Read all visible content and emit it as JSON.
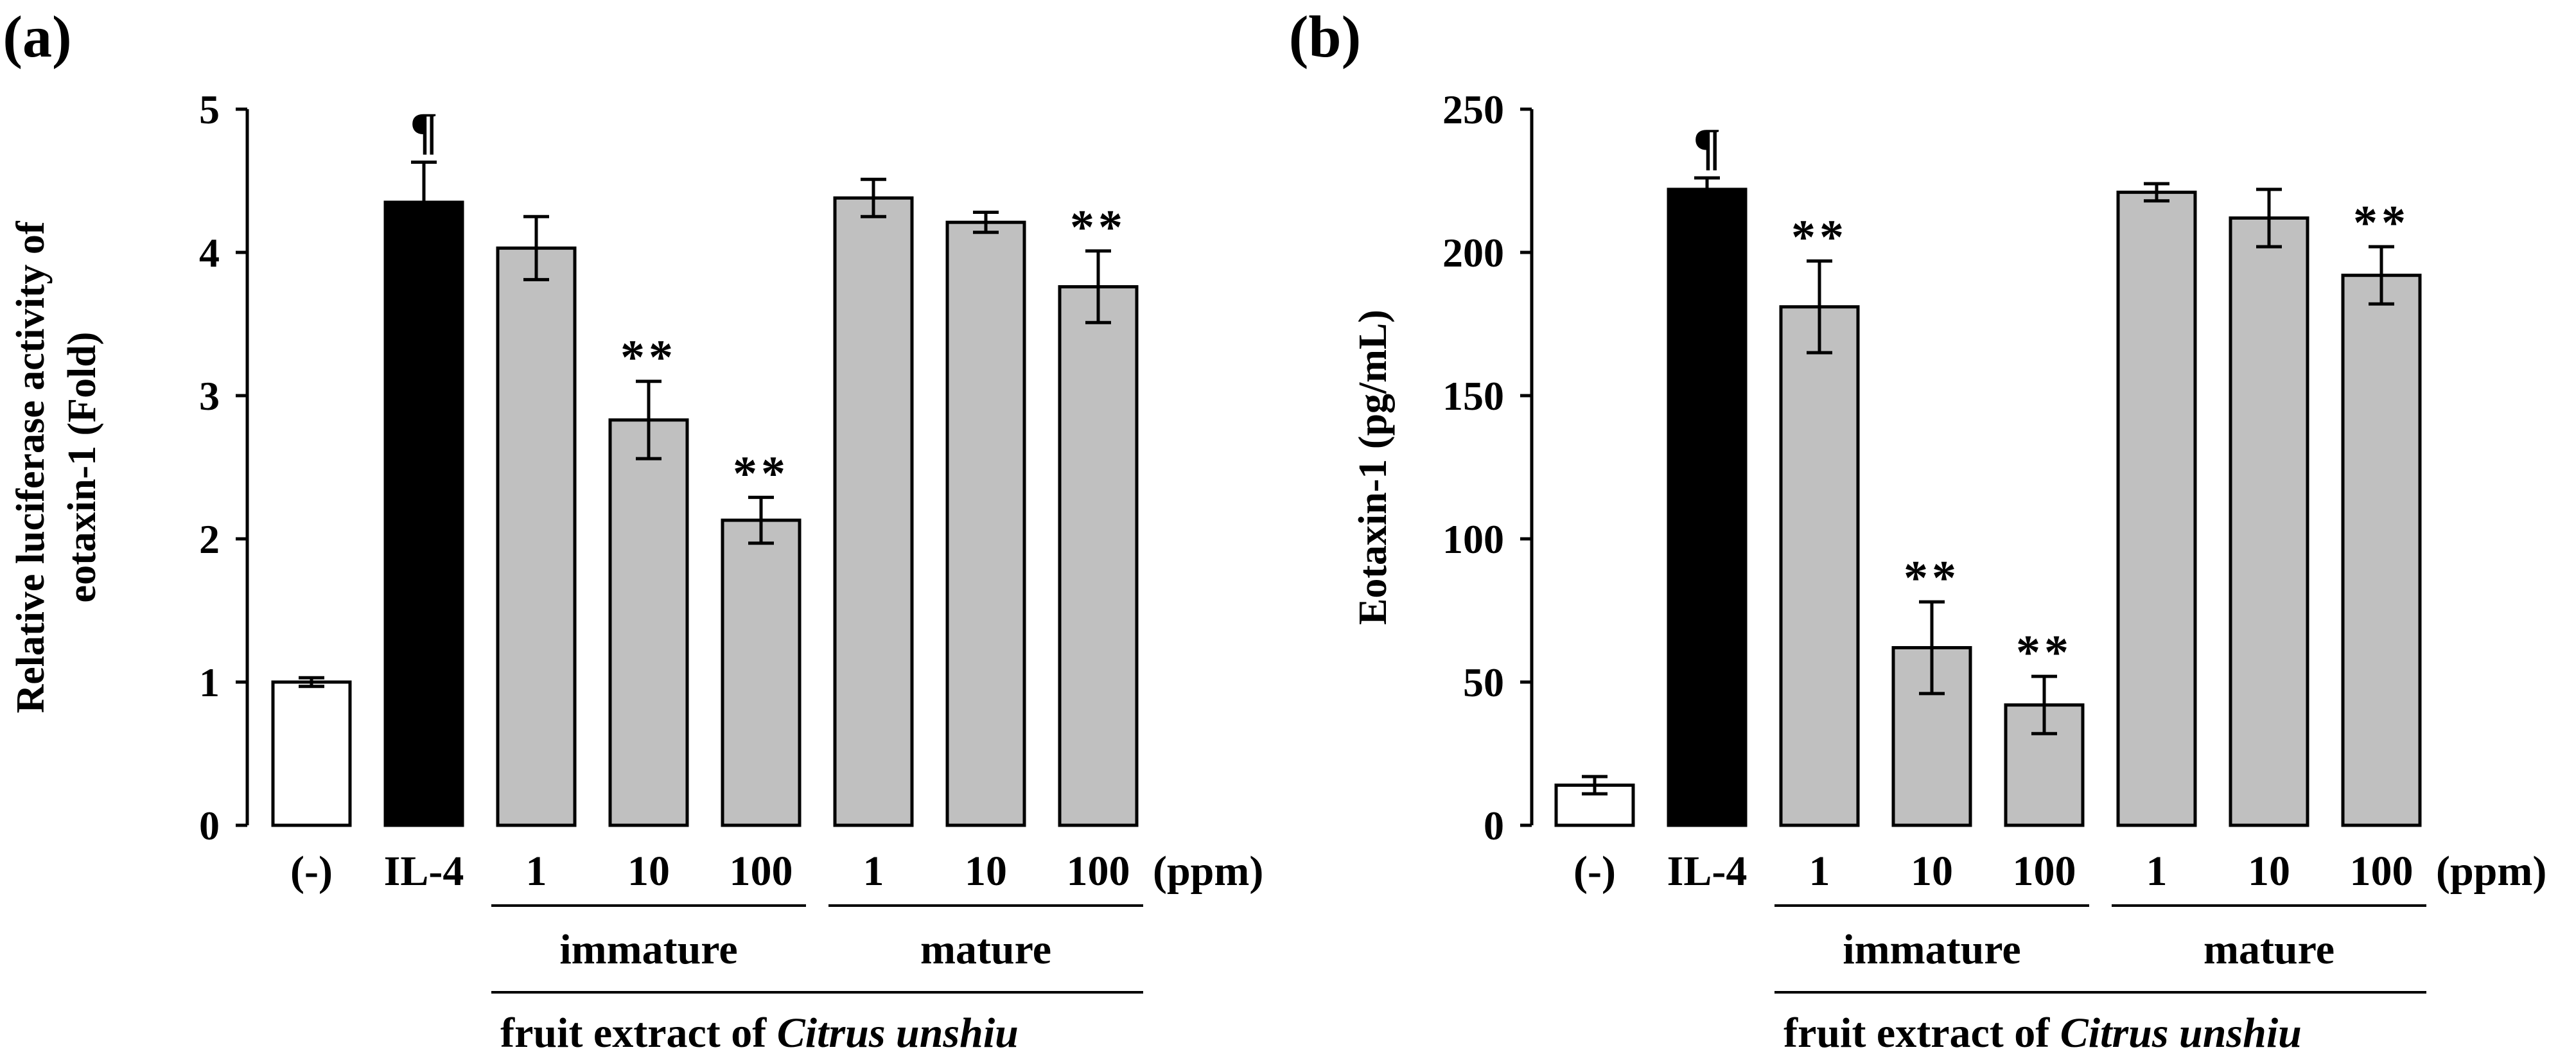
{
  "chart_data": [
    {
      "panel_label": "(a)",
      "type": "bar",
      "categories": [
        "(-)",
        "IL-4",
        "1",
        "10",
        "100",
        "1",
        "10",
        "100"
      ],
      "values": [
        1.0,
        4.35,
        4.03,
        2.83,
        2.13,
        4.38,
        4.21,
        3.76
      ],
      "errors": [
        0.03,
        0.28,
        0.22,
        0.27,
        0.16,
        0.13,
        0.07,
        0.25
      ],
      "markers": [
        "",
        "¶",
        "",
        "**",
        "**",
        "",
        "",
        "**"
      ],
      "bar_fills": [
        "#ffffff",
        "#000000",
        "#c0c0c0",
        "#c0c0c0",
        "#c0c0c0",
        "#c0c0c0",
        "#c0c0c0",
        "#c0c0c0"
      ],
      "unit_label": "(ppm)",
      "group_labels": [
        "immature",
        "mature"
      ],
      "extract_label_prefix": "fruit extract of ",
      "extract_label_species": "Citrus unshiu",
      "ylabel_line1": "Relative luciferase activity of",
      "ylabel_line2": "eotaxin-1 (Fold)",
      "ylim": [
        0,
        5
      ],
      "yticks": [
        "0",
        "1",
        "2",
        "3",
        "4",
        "5"
      ],
      "grid": false
    },
    {
      "panel_label": "(b)",
      "type": "bar",
      "categories": [
        "(-)",
        "IL-4",
        "1",
        "10",
        "100",
        "1",
        "10",
        "100"
      ],
      "values": [
        14,
        222,
        181,
        62,
        42,
        221,
        212,
        192
      ],
      "errors": [
        3,
        4,
        16,
        16,
        10,
        3,
        10,
        10
      ],
      "markers": [
        "",
        "¶",
        "**",
        "**",
        "**",
        "",
        "",
        "**"
      ],
      "bar_fills": [
        "#ffffff",
        "#000000",
        "#c0c0c0",
        "#c0c0c0",
        "#c0c0c0",
        "#c0c0c0",
        "#c0c0c0",
        "#c0c0c0"
      ],
      "unit_label": "(ppm)",
      "group_labels": [
        "immature",
        "mature"
      ],
      "extract_label_prefix": "fruit extract of ",
      "extract_label_species": "Citrus unshiu",
      "ylabel_line1": "Eotaxin-1 (pg/mL)",
      "ylabel_line2": "",
      "ylim": [
        0,
        250
      ],
      "yticks": [
        "0",
        "50",
        "100",
        "150",
        "200",
        "250"
      ],
      "grid": false
    }
  ]
}
